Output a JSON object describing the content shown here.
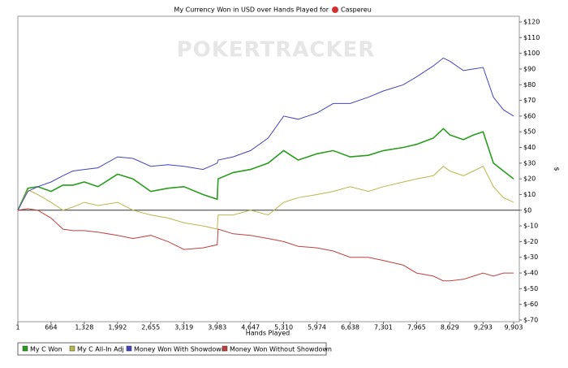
{
  "chart_data": {
    "type": "line",
    "title": "My Currency Won in USD over Hands Played for",
    "player": "Caspereu",
    "watermark": "POKERTRACKER",
    "x_label": "Hands Played",
    "y_label": "$",
    "x": [
      1,
      200,
      400,
      664,
      900,
      1100,
      1328,
      1600,
      1992,
      2300,
      2655,
      3000,
      3319,
      3700,
      3983,
      4000,
      4300,
      4647,
      5000,
      5310,
      5600,
      5974,
      6300,
      6638,
      7000,
      7301,
      7700,
      7965,
      8300,
      8500,
      8629,
      8900,
      9100,
      9293,
      9500,
      9700,
      9903
    ],
    "series": [
      {
        "name": "My C Won",
        "color": "#2a9c1e",
        "values": [
          0,
          14,
          15,
          12,
          16,
          16,
          18,
          15,
          23,
          20,
          12,
          14,
          15,
          10,
          7,
          20,
          24,
          26,
          30,
          38,
          32,
          36,
          38,
          34,
          35,
          38,
          40,
          42,
          46,
          52,
          48,
          45,
          48,
          50,
          30,
          25,
          20
        ]
      },
      {
        "name": "My C All-In Adj",
        "color": "#b8b84a",
        "values": [
          0,
          13,
          10,
          5,
          0,
          2,
          5,
          3,
          5,
          0,
          -3,
          -5,
          -8,
          -10,
          -12,
          -3,
          -3,
          0,
          -3,
          5,
          8,
          10,
          12,
          15,
          12,
          15,
          18,
          20,
          22,
          28,
          25,
          22,
          25,
          28,
          15,
          8,
          5
        ]
      },
      {
        "name": "Money Won With Showdown",
        "color": "#4444bb",
        "values": [
          0,
          12,
          15,
          18,
          22,
          25,
          26,
          27,
          34,
          33,
          28,
          29,
          28,
          26,
          30,
          32,
          34,
          38,
          46,
          60,
          58,
          62,
          68,
          68,
          72,
          76,
          80,
          85,
          92,
          97,
          95,
          89,
          90,
          91,
          72,
          64,
          60
        ]
      },
      {
        "name": "Money Won Without Showdown",
        "color": "#c04040",
        "values": [
          0,
          1,
          0,
          -5,
          -12,
          -13,
          -13,
          -14,
          -16,
          -18,
          -16,
          -20,
          -25,
          -24,
          -22,
          -12,
          -15,
          -16,
          -18,
          -20,
          -23,
          -24,
          -26,
          -30,
          -30,
          -32,
          -35,
          -40,
          -42,
          -45,
          -45,
          -44,
          -42,
          -40,
          -42,
          -40,
          -40
        ]
      }
    ],
    "xlim": [
      1,
      9903
    ],
    "xticks": [
      1,
      664,
      {
        "value": 1328,
        "label": "1,328"
      },
      {
        "value": 1992,
        "label": "1,992"
      },
      {
        "value": 2655,
        "label": "2,655"
      },
      {
        "value": 3319,
        "label": "3,319"
      },
      {
        "value": 3983,
        "label": "3,983"
      },
      {
        "value": 4647,
        "label": "4,647"
      },
      {
        "value": 5310,
        "label": "5,310"
      },
      {
        "value": 5974,
        "label": "5,974"
      },
      {
        "value": 6638,
        "label": "6,638"
      },
      {
        "value": 7301,
        "label": "7,301"
      },
      {
        "value": 7965,
        "label": "7,965"
      },
      {
        "value": 8629,
        "label": "8,629"
      },
      {
        "value": 9293,
        "label": "9,293"
      },
      {
        "value": 9903,
        "label": "9,903"
      }
    ],
    "ylim": [
      -70,
      120
    ],
    "yticks": [
      {
        "value": 120,
        "label": "$120"
      },
      {
        "value": 110,
        "label": "$110"
      },
      {
        "value": 100,
        "label": "$100"
      },
      {
        "value": 90,
        "label": "$90"
      },
      {
        "value": 80,
        "label": "$80"
      },
      {
        "value": 70,
        "label": "$70"
      },
      {
        "value": 60,
        "label": "$60"
      },
      {
        "value": 50,
        "label": "$50"
      },
      {
        "value": 40,
        "label": "$40"
      },
      {
        "value": 30,
        "label": "$30"
      },
      {
        "value": 20,
        "label": "$20"
      },
      {
        "value": 10,
        "label": "$10"
      },
      {
        "value": 0,
        "label": "$0"
      },
      {
        "value": -10,
        "label": "$-10"
      },
      {
        "value": -20,
        "label": "$-20"
      },
      {
        "value": -30,
        "label": "$-30"
      },
      {
        "value": -40,
        "label": "$-40"
      },
      {
        "value": -50,
        "label": "$-50"
      },
      {
        "value": -60,
        "label": "$-60"
      },
      {
        "value": -70,
        "label": "$-70"
      }
    ],
    "legend": "bottom-left"
  }
}
